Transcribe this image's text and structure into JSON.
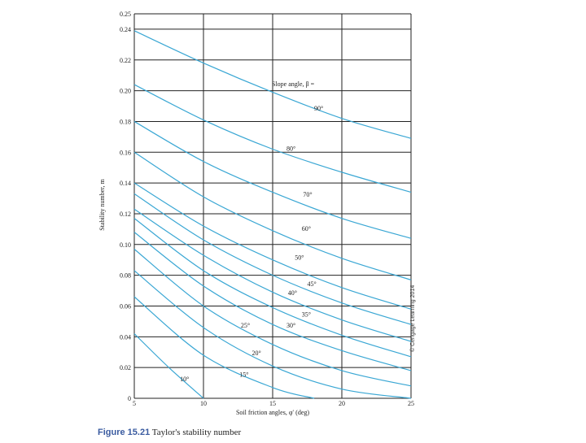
{
  "chart_data": {
    "type": "line",
    "xlabel": "Soil friction angles, φ′ (deg)",
    "ylabel": "Stability number, m",
    "xlim": [
      5,
      25
    ],
    "ylim": [
      0,
      0.25
    ],
    "x_ticks": [
      "5",
      "10",
      "15",
      "20",
      "25"
    ],
    "y_ticks": [
      "0",
      "0.02",
      "0.04",
      "0.06",
      "0.08",
      "0.10",
      "0.12",
      "0.14",
      "0.16",
      "0.18",
      "0.20",
      "0.22",
      "0.24",
      "0.25"
    ],
    "legend_title": "Slope angle, β =",
    "grid": true,
    "series": [
      {
        "name": "90°",
        "points": [
          [
            5,
            0.239
          ],
          [
            10,
            0.218
          ],
          [
            15,
            0.199
          ],
          [
            20,
            0.182
          ],
          [
            25,
            0.169
          ]
        ]
      },
      {
        "name": "80°",
        "points": [
          [
            5,
            0.204
          ],
          [
            10,
            0.181
          ],
          [
            15,
            0.162
          ],
          [
            20,
            0.147
          ],
          [
            25,
            0.134
          ]
        ]
      },
      {
        "name": "70°",
        "points": [
          [
            5,
            0.18
          ],
          [
            10,
            0.154
          ],
          [
            15,
            0.134
          ],
          [
            20,
            0.117
          ],
          [
            25,
            0.104
          ]
        ]
      },
      {
        "name": "60°",
        "points": [
          [
            5,
            0.16
          ],
          [
            10,
            0.131
          ],
          [
            15,
            0.109
          ],
          [
            20,
            0.091
          ],
          [
            25,
            0.077
          ]
        ]
      },
      {
        "name": "50°",
        "points": [
          [
            5,
            0.14
          ],
          [
            10,
            0.112
          ],
          [
            15,
            0.09
          ],
          [
            20,
            0.072
          ],
          [
            25,
            0.058
          ]
        ]
      },
      {
        "name": "45°",
        "points": [
          [
            5,
            0.133
          ],
          [
            10,
            0.103
          ],
          [
            15,
            0.08
          ],
          [
            20,
            0.062
          ],
          [
            25,
            0.048
          ]
        ]
      },
      {
        "name": "40°",
        "points": [
          [
            5,
            0.123
          ],
          [
            10,
            0.093
          ],
          [
            15,
            0.069
          ],
          [
            20,
            0.051
          ],
          [
            25,
            0.037
          ]
        ]
      },
      {
        "name": "35°",
        "points": [
          [
            5,
            0.117
          ],
          [
            10,
            0.083
          ],
          [
            15,
            0.059
          ],
          [
            20,
            0.041
          ],
          [
            25,
            0.027
          ]
        ]
      },
      {
        "name": "30°",
        "points": [
          [
            5,
            0.108
          ],
          [
            10,
            0.073
          ],
          [
            15,
            0.048
          ],
          [
            20,
            0.031
          ],
          [
            25,
            0.018
          ]
        ]
      },
      {
        "name": "25°",
        "points": [
          [
            5,
            0.097
          ],
          [
            10,
            0.06
          ],
          [
            15,
            0.035
          ],
          [
            20,
            0.018
          ],
          [
            25,
            0.008
          ]
        ]
      },
      {
        "name": "20°",
        "points": [
          [
            5,
            0.083
          ],
          [
            10,
            0.046
          ],
          [
            15,
            0.021
          ],
          [
            20,
            0.006
          ],
          [
            25,
            0.0
          ]
        ]
      },
      {
        "name": "15°",
        "points": [
          [
            5,
            0.066
          ],
          [
            10,
            0.028
          ],
          [
            15,
            0.007
          ],
          [
            18,
            0.0
          ]
        ]
      },
      {
        "name": "10°",
        "points": [
          [
            5,
            0.042
          ],
          [
            7.5,
            0.02
          ],
          [
            10,
            0.0
          ]
        ]
      }
    ],
    "labels": [
      {
        "text": "90°",
        "x": 18.0,
        "y": 0.187
      },
      {
        "text": "80°",
        "x": 16.0,
        "y": 0.161
      },
      {
        "text": "70°",
        "x": 17.2,
        "y": 0.131
      },
      {
        "text": "60°",
        "x": 17.1,
        "y": 0.109
      },
      {
        "text": "50°",
        "x": 16.6,
        "y": 0.09
      },
      {
        "text": "45°",
        "x": 17.5,
        "y": 0.073
      },
      {
        "text": "40°",
        "x": 16.1,
        "y": 0.067
      },
      {
        "text": "35°",
        "x": 17.1,
        "y": 0.053
      },
      {
        "text": "30°",
        "x": 16.0,
        "y": 0.046
      },
      {
        "text": "25°",
        "x": 12.7,
        "y": 0.046
      },
      {
        "text": "20°",
        "x": 13.5,
        "y": 0.028
      },
      {
        "text": "15°",
        "x": 12.6,
        "y": 0.014
      },
      {
        "text": "10°",
        "x": 8.3,
        "y": 0.011
      }
    ],
    "line_color": "#3aa7d4",
    "grid_color": "#222222"
  },
  "caption": {
    "figure_number": "Figure 15.21",
    "text": "Taylor's stability number"
  },
  "credit": "© Cengage Learning 2014"
}
